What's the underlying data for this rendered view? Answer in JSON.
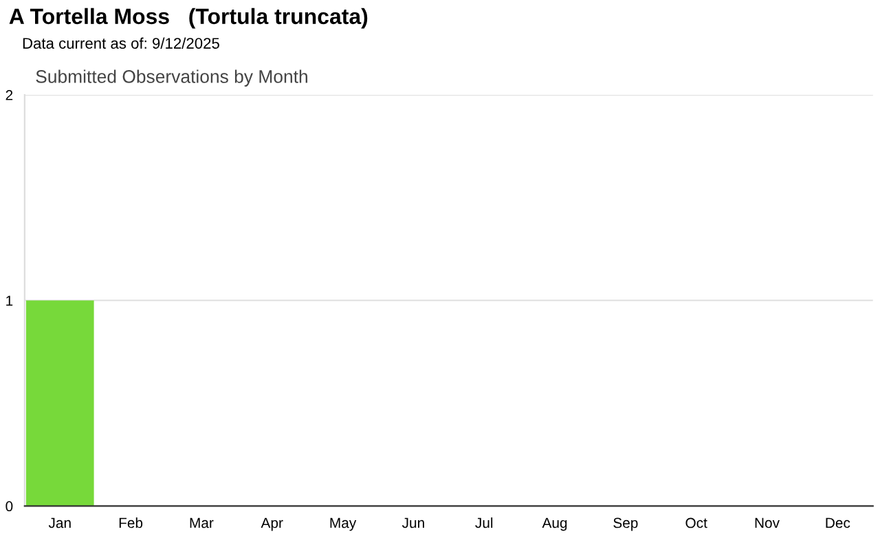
{
  "chart_data": {
    "type": "bar",
    "title": "A Tortella Moss   (Tortula truncata)",
    "subtitle": "Data current as of: 9/12/2025",
    "annotations": [
      "Submitted Observations by Month"
    ],
    "categories": [
      "Jan",
      "Feb",
      "Mar",
      "Apr",
      "May",
      "Jun",
      "Jul",
      "Aug",
      "Sep",
      "Oct",
      "Nov",
      "Dec"
    ],
    "values": [
      1,
      0,
      0,
      0,
      0,
      0,
      0,
      0,
      0,
      0,
      0,
      0
    ],
    "color": "#77d93a",
    "ylim": [
      0,
      2
    ],
    "yticks": [
      0,
      1,
      2
    ],
    "grid": "y",
    "legend": false
  }
}
